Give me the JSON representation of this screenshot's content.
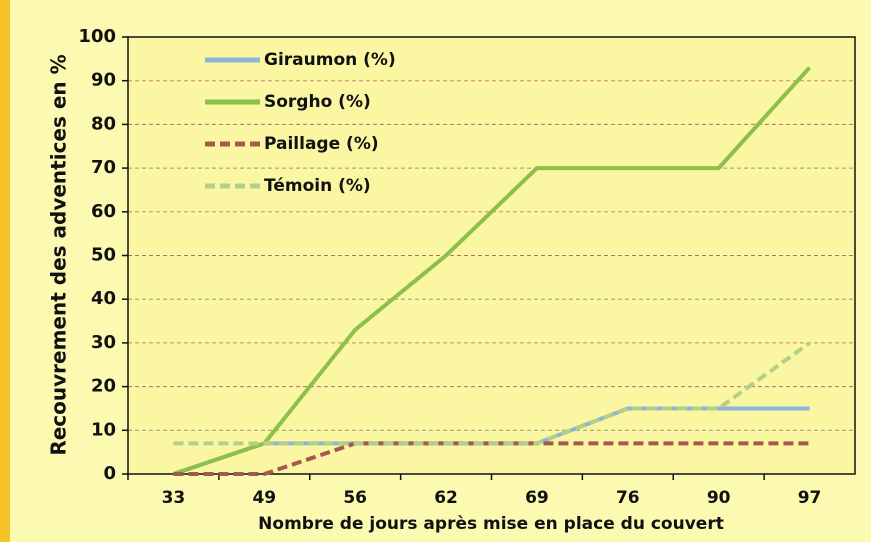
{
  "chart_data": {
    "type": "line",
    "y_label": "Recouvrement des adventices en %",
    "x_label": "Nombre de jours après mise en place du couvert",
    "categories": [
      "33",
      "49",
      "56",
      "62",
      "69",
      "76",
      "90",
      "97"
    ],
    "series": [
      {
        "name": "Giraumon (%)",
        "color": "#8fb4dc",
        "dashed": false,
        "values": [
          0,
          7,
          7,
          7,
          7,
          15,
          15,
          15
        ]
      },
      {
        "name": "Sorgho (%)",
        "color": "#8cc04a",
        "dashed": false,
        "values": [
          0,
          7,
          33,
          50,
          70,
          70,
          70,
          93
        ]
      },
      {
        "name": "Paillage (%)",
        "color": "#a5584e",
        "dashed": true,
        "values": [
          0,
          0,
          7,
          7,
          7,
          7,
          7,
          7
        ]
      },
      {
        "name": "Témoin (%)",
        "color": "#b5cf88",
        "dashed": true,
        "values": [
          7,
          7,
          7,
          7,
          7,
          15,
          15,
          30
        ]
      }
    ],
    "ylim": [
      0,
      100
    ],
    "yticks": [
      0,
      10,
      20,
      30,
      40,
      50,
      60,
      70,
      80,
      90,
      100
    ],
    "grid": true,
    "legend": "upper-left"
  }
}
